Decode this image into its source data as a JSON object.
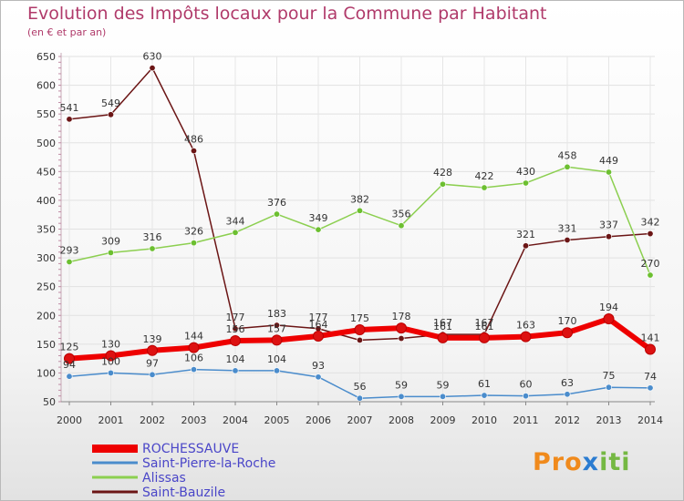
{
  "chart_data": {
    "type": "line",
    "title": "Evolution des Impôts locaux pour la Commune par Habitant",
    "subtitle": "(en € et par an)",
    "x": [
      "2000",
      "2001",
      "2002",
      "2003",
      "2004",
      "2005",
      "2006",
      "2007",
      "2008",
      "2009",
      "2010",
      "2011",
      "2012",
      "2013",
      "2014"
    ],
    "ylim": [
      50,
      650
    ],
    "yticks": [
      50,
      100,
      150,
      200,
      250,
      300,
      350,
      400,
      450,
      500,
      550,
      600,
      650
    ],
    "series": [
      {
        "name": "ROCHESSAUVE",
        "color": "#ee0000",
        "marker": "#dd1111",
        "values": [
          125,
          130,
          139,
          144,
          156,
          157,
          164,
          175,
          178,
          161,
          161,
          163,
          170,
          194,
          141
        ],
        "labels": [
          "125",
          "130",
          "139",
          "144",
          "156",
          "157",
          "164",
          "175",
          "178",
          "161",
          "161",
          "163",
          "170",
          "194",
          "141"
        ]
      },
      {
        "name": "Saint-Pierre-la-Roche",
        "color": "#4a8ccc",
        "marker": "#4a8ccc",
        "values": [
          94,
          100,
          97,
          106,
          104,
          104,
          93,
          56,
          59,
          59,
          61,
          60,
          63,
          75,
          74
        ],
        "labels": [
          "94",
          "100",
          "97",
          "106",
          "104",
          "104",
          "93",
          "56",
          "59",
          "59",
          "61",
          "60",
          "63",
          "75",
          "74"
        ]
      },
      {
        "name": "Alissas",
        "color": "#8ccf50",
        "marker": "#6cbf30",
        "values": [
          293,
          309,
          316,
          326,
          344,
          376,
          349,
          382,
          356,
          428,
          422,
          430,
          458,
          449,
          270
        ],
        "labels": [
          "293",
          "309",
          "316",
          "326",
          "344",
          "376",
          "349",
          "382",
          "356",
          "428",
          "422",
          "430",
          "458",
          "449",
          "270"
        ]
      },
      {
        "name": "Saint-Bauzile",
        "color": "#6b1515",
        "marker": "#6b1515",
        "values": [
          541,
          549,
          630,
          486,
          177,
          183,
          177,
          157,
          160,
          167,
          167,
          321,
          331,
          337,
          342
        ],
        "labels": [
          "541",
          "549",
          "630",
          "486",
          "177",
          "183",
          "177",
          "",
          "",
          "167",
          "167",
          "321",
          "331",
          "337",
          "342"
        ]
      }
    ]
  },
  "legend": [
    {
      "name": "ROCHESSAUVE",
      "color": "#ee0000",
      "text_color": "#4a46c8"
    },
    {
      "name": "Saint-Pierre-la-Roche",
      "color": "#4a8ccc",
      "text_color": "#4a46c8"
    },
    {
      "name": "Alissas",
      "color": "#8ccf50",
      "text_color": "#4a46c8"
    },
    {
      "name": "Saint-Bauzile",
      "color": "#6b1515",
      "text_color": "#4a46c8"
    }
  ],
  "logo": {
    "p1": "Pro",
    "p2": "x",
    "p3": "iti"
  }
}
